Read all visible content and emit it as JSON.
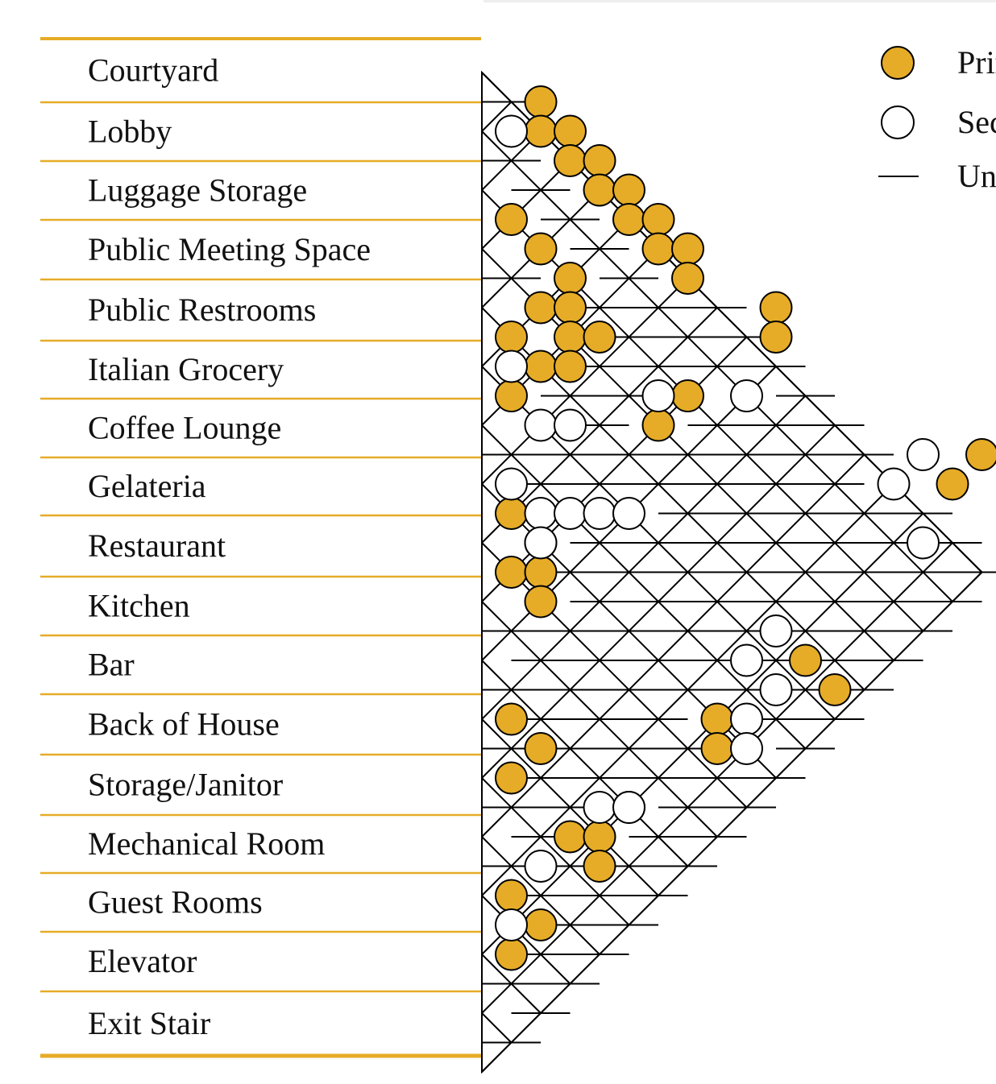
{
  "diagram": {
    "type": "adjacency-matrix",
    "title": "",
    "rooms": [
      "Courtyard",
      "Lobby",
      "Luggage Storage",
      "Public Meeting Space",
      "Public Restrooms",
      "Italian Grocery",
      "Coffee Lounge",
      "Gelateria",
      "Restaurant",
      "Kitchen",
      "Bar",
      "Back of House",
      "Storage/Janitor",
      "Mechanical Room",
      "Guest Rooms",
      "Elevator",
      "Exit Stair"
    ],
    "relationship_levels": [
      "primary",
      "secondary",
      "unrelated"
    ],
    "relationships": [
      {
        "between": [
          "Courtyard",
          "Lobby"
        ],
        "level": "primary"
      },
      {
        "between": [
          "Courtyard",
          "Public Meeting Space"
        ],
        "level": "primary"
      },
      {
        "between": [
          "Courtyard",
          "Public Restrooms"
        ],
        "level": "secondary"
      },
      {
        "between": [
          "Courtyard",
          "Italian Grocery"
        ],
        "level": "primary"
      },
      {
        "between": [
          "Courtyard",
          "Coffee Lounge"
        ],
        "level": "primary"
      },
      {
        "between": [
          "Courtyard",
          "Gelateria"
        ],
        "level": "primary"
      },
      {
        "between": [
          "Courtyard",
          "Restaurant"
        ],
        "level": "secondary"
      },
      {
        "between": [
          "Courtyard",
          "Kitchen"
        ],
        "level": "secondary"
      },
      {
        "between": [
          "Courtyard",
          "Bar"
        ],
        "level": "primary"
      },
      {
        "between": [
          "Courtyard",
          "Storage/Janitor"
        ],
        "level": "secondary"
      },
      {
        "between": [
          "Courtyard",
          "Mechanical Room"
        ],
        "level": "secondary"
      },
      {
        "between": [
          "Courtyard",
          "Elevator"
        ],
        "level": "secondary"
      },
      {
        "between": [
          "Courtyard",
          "Exit Stair"
        ],
        "level": "secondary"
      },
      {
        "between": [
          "Courtyard",
          "Guest Rooms"
        ],
        "level": "primary"
      },
      {
        "between": [
          "Lobby",
          "Luggage Storage"
        ],
        "level": "primary"
      },
      {
        "between": [
          "Lobby",
          "Public Restrooms"
        ],
        "level": "primary"
      },
      {
        "between": [
          "Lobby",
          "Coffee Lounge"
        ],
        "level": "primary"
      },
      {
        "between": [
          "Luggage Storage",
          "Public Restrooms"
        ],
        "level": "primary"
      },
      {
        "between": [
          "Luggage Storage",
          "Public Meeting Space"
        ],
        "level": "primary"
      },
      {
        "between": [
          "Public Meeting Space",
          "Public Restrooms"
        ],
        "level": "primary"
      },
      {
        "between": [
          "Public Meeting Space",
          "Italian Grocery"
        ],
        "level": "primary"
      },
      {
        "between": [
          "Public Restrooms",
          "Italian Grocery"
        ],
        "level": "primary"
      },
      {
        "between": [
          "Italian Grocery",
          "Coffee Lounge"
        ],
        "level": "primary"
      },
      {
        "between": [
          "Italian Grocery",
          "Gelateria"
        ],
        "level": "primary"
      },
      {
        "between": [
          "Coffee Lounge",
          "Gelateria"
        ],
        "level": "primary"
      },
      {
        "between": [
          "Restaurant",
          "Kitchen"
        ],
        "level": "primary"
      },
      {
        "between": [
          "Restaurant",
          "Bar"
        ],
        "level": "primary"
      },
      {
        "between": [
          "Kitchen",
          "Bar"
        ],
        "level": "primary"
      },
      {
        "between": [
          "Kitchen",
          "Back of House"
        ],
        "level": "primary"
      },
      {
        "between": [
          "Back of House",
          "Storage/Janitor"
        ],
        "level": "primary"
      },
      {
        "between": [
          "Back of House",
          "Mechanical Room"
        ],
        "level": "primary"
      },
      {
        "between": [
          "Storage/Janitor",
          "Mechanical Room"
        ],
        "level": "primary"
      },
      {
        "between": [
          "Mechanical Room",
          "Guest Rooms"
        ],
        "level": "primary"
      },
      {
        "between": [
          "Guest Rooms",
          "Elevator"
        ],
        "level": "primary"
      },
      {
        "between": [
          "Guest Rooms",
          "Exit Stair"
        ],
        "level": "primary"
      },
      {
        "between": [
          "Elevator",
          "Exit Stair"
        ],
        "level": "primary"
      }
    ],
    "diagram_cells": {
      "primary": [
        [
          1,
          1
        ],
        [
          2,
          1
        ],
        [
          2,
          2
        ],
        [
          3,
          2
        ],
        [
          3,
          3
        ],
        [
          4,
          3
        ],
        [
          4,
          4
        ],
        [
          5,
          0
        ],
        [
          5,
          4
        ],
        [
          5,
          5
        ],
        [
          6,
          1
        ],
        [
          6,
          5
        ],
        [
          6,
          6
        ],
        [
          7,
          2
        ],
        [
          7,
          6
        ],
        [
          8,
          1
        ],
        [
          8,
          2
        ],
        [
          8,
          9
        ],
        [
          9,
          0
        ],
        [
          9,
          2
        ],
        [
          9,
          3
        ],
        [
          9,
          9
        ],
        [
          10,
          1
        ],
        [
          10,
          2
        ],
        [
          11,
          0
        ],
        [
          11,
          6
        ],
        [
          12,
          5
        ],
        [
          13,
          16
        ],
        [
          14,
          15
        ],
        [
          15,
          0
        ],
        [
          16,
          1
        ],
        [
          17,
          0
        ],
        [
          17,
          1
        ],
        [
          18,
          1
        ],
        [
          20,
          10
        ],
        [
          21,
          11
        ],
        [
          22,
          0
        ],
        [
          22,
          7
        ],
        [
          23,
          1
        ],
        [
          23,
          7
        ],
        [
          24,
          0
        ],
        [
          25,
          4
        ],
        [
          26,
          2
        ],
        [
          26,
          3
        ],
        [
          27,
          3
        ],
        [
          28,
          0
        ],
        [
          29,
          1
        ],
        [
          30,
          0
        ]
      ],
      "secondary": [
        [
          2,
          0
        ],
        [
          10,
          0
        ],
        [
          11,
          5
        ],
        [
          11,
          8
        ],
        [
          12,
          1
        ],
        [
          12,
          2
        ],
        [
          13,
          14
        ],
        [
          14,
          0
        ],
        [
          14,
          13
        ],
        [
          15,
          1
        ],
        [
          15,
          2
        ],
        [
          15,
          3
        ],
        [
          15,
          4
        ],
        [
          16,
          1
        ],
        [
          16,
          14
        ],
        [
          19,
          9
        ],
        [
          20,
          8
        ],
        [
          21,
          9
        ],
        [
          22,
          8
        ],
        [
          23,
          8
        ],
        [
          25,
          3
        ],
        [
          25,
          4
        ],
        [
          27,
          1
        ],
        [
          29,
          0
        ]
      ]
    },
    "legend": [
      {
        "level": "primary",
        "label": "Primary",
        "fill": "#e6ac27"
      },
      {
        "level": "secondary",
        "label": "Secondary",
        "fill": "#ffffff"
      },
      {
        "level": "unrelated",
        "label": "Unrelated",
        "fill": "none"
      }
    ],
    "colors": {
      "accent_line": "#e6ac27",
      "primary_fill": "#e6ac27",
      "secondary_fill": "#ffffff",
      "grid_stroke": "#000000"
    }
  }
}
